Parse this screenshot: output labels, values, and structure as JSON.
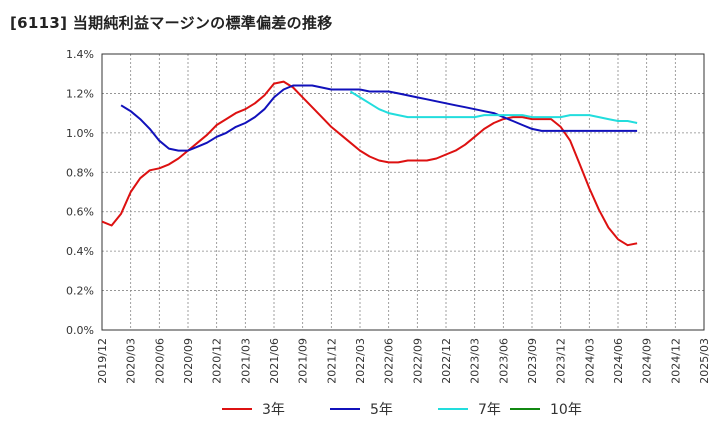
{
  "title": "[6113]  当期純利益マージンの標準偏差の推移",
  "chart_data": {
    "type": "line",
    "title": "[6113]  当期純利益マージンの標準偏差の推移",
    "xlabel": "",
    "ylabel": "",
    "ylim": [
      0,
      1.4
    ],
    "y_ticks": [
      "0.0%",
      "0.2%",
      "0.4%",
      "0.6%",
      "0.8%",
      "1.0%",
      "1.2%",
      "1.4%"
    ],
    "x_ticks": [
      "2019/12",
      "2020/03",
      "2020/06",
      "2020/09",
      "2020/12",
      "2021/03",
      "2021/06",
      "2021/09",
      "2021/12",
      "2022/03",
      "2022/06",
      "2022/09",
      "2022/12",
      "2023/03",
      "2023/06",
      "2023/09",
      "2023/12",
      "2024/03",
      "2024/06",
      "2024/09",
      "2024/12",
      "2025/03"
    ],
    "grid": true,
    "legend_position": "bottom",
    "series": [
      {
        "name": "3年",
        "color": "#dd1111",
        "points": [
          [
            0,
            0.55
          ],
          [
            1,
            0.53
          ],
          [
            2,
            0.59
          ],
          [
            3,
            0.7
          ],
          [
            4,
            0.77
          ],
          [
            5,
            0.81
          ],
          [
            6,
            0.82
          ],
          [
            7,
            0.84
          ],
          [
            8,
            0.87
          ],
          [
            9,
            0.91
          ],
          [
            10,
            0.95
          ],
          [
            11,
            0.99
          ],
          [
            12,
            1.04
          ],
          [
            13,
            1.07
          ],
          [
            14,
            1.1
          ],
          [
            15,
            1.12
          ],
          [
            16,
            1.15
          ],
          [
            17,
            1.19
          ],
          [
            18,
            1.25
          ],
          [
            19,
            1.26
          ],
          [
            20,
            1.23
          ],
          [
            21,
            1.18
          ],
          [
            22,
            1.13
          ],
          [
            23,
            1.08
          ],
          [
            24,
            1.03
          ],
          [
            25,
            0.99
          ],
          [
            26,
            0.95
          ],
          [
            27,
            0.91
          ],
          [
            28,
            0.88
          ],
          [
            29,
            0.86
          ],
          [
            30,
            0.85
          ],
          [
            31,
            0.85
          ],
          [
            32,
            0.86
          ],
          [
            33,
            0.86
          ],
          [
            34,
            0.86
          ],
          [
            35,
            0.87
          ],
          [
            36,
            0.89
          ],
          [
            37,
            0.91
          ],
          [
            38,
            0.94
          ],
          [
            39,
            0.98
          ],
          [
            40,
            1.02
          ],
          [
            41,
            1.05
          ],
          [
            42,
            1.07
          ],
          [
            43,
            1.08
          ],
          [
            44,
            1.08
          ],
          [
            45,
            1.07
          ],
          [
            46,
            1.07
          ],
          [
            47,
            1.07
          ],
          [
            48,
            1.03
          ],
          [
            49,
            0.96
          ],
          [
            50,
            0.84
          ],
          [
            51,
            0.72
          ],
          [
            52,
            0.61
          ],
          [
            53,
            0.52
          ],
          [
            54,
            0.46
          ],
          [
            55,
            0.43
          ],
          [
            56,
            0.44
          ]
        ]
      },
      {
        "name": "5年",
        "color": "#1111bb",
        "points": [
          [
            2,
            1.14
          ],
          [
            3,
            1.11
          ],
          [
            4,
            1.07
          ],
          [
            5,
            1.02
          ],
          [
            6,
            0.96
          ],
          [
            7,
            0.92
          ],
          [
            8,
            0.91
          ],
          [
            9,
            0.91
          ],
          [
            10,
            0.93
          ],
          [
            11,
            0.95
          ],
          [
            12,
            0.98
          ],
          [
            13,
            1.0
          ],
          [
            14,
            1.03
          ],
          [
            15,
            1.05
          ],
          [
            16,
            1.08
          ],
          [
            17,
            1.12
          ],
          [
            18,
            1.18
          ],
          [
            19,
            1.22
          ],
          [
            20,
            1.24
          ],
          [
            21,
            1.24
          ],
          [
            22,
            1.24
          ],
          [
            23,
            1.23
          ],
          [
            24,
            1.22
          ],
          [
            25,
            1.22
          ],
          [
            26,
            1.22
          ],
          [
            27,
            1.22
          ],
          [
            28,
            1.21
          ],
          [
            29,
            1.21
          ],
          [
            30,
            1.21
          ],
          [
            31,
            1.2
          ],
          [
            32,
            1.19
          ],
          [
            33,
            1.18
          ],
          [
            34,
            1.17
          ],
          [
            35,
            1.16
          ],
          [
            36,
            1.15
          ],
          [
            37,
            1.14
          ],
          [
            38,
            1.13
          ],
          [
            39,
            1.12
          ],
          [
            40,
            1.11
          ],
          [
            41,
            1.1
          ],
          [
            42,
            1.08
          ],
          [
            43,
            1.06
          ],
          [
            44,
            1.04
          ],
          [
            45,
            1.02
          ],
          [
            46,
            1.01
          ],
          [
            47,
            1.01
          ],
          [
            48,
            1.01
          ],
          [
            49,
            1.01
          ],
          [
            50,
            1.01
          ],
          [
            51,
            1.01
          ],
          [
            52,
            1.01
          ],
          [
            53,
            1.01
          ],
          [
            54,
            1.01
          ],
          [
            55,
            1.01
          ],
          [
            56,
            1.01
          ]
        ]
      },
      {
        "name": "7年",
        "color": "#22dddd",
        "points": [
          [
            26,
            1.21
          ],
          [
            27,
            1.18
          ],
          [
            28,
            1.15
          ],
          [
            29,
            1.12
          ],
          [
            30,
            1.1
          ],
          [
            31,
            1.09
          ],
          [
            32,
            1.08
          ],
          [
            33,
            1.08
          ],
          [
            34,
            1.08
          ],
          [
            35,
            1.08
          ],
          [
            36,
            1.08
          ],
          [
            37,
            1.08
          ],
          [
            38,
            1.08
          ],
          [
            39,
            1.08
          ],
          [
            40,
            1.09
          ],
          [
            41,
            1.09
          ],
          [
            42,
            1.09
          ],
          [
            43,
            1.09
          ],
          [
            44,
            1.09
          ],
          [
            45,
            1.08
          ],
          [
            46,
            1.08
          ],
          [
            47,
            1.08
          ],
          [
            48,
            1.08
          ],
          [
            49,
            1.09
          ],
          [
            50,
            1.09
          ],
          [
            51,
            1.09
          ],
          [
            52,
            1.08
          ],
          [
            53,
            1.07
          ],
          [
            54,
            1.06
          ],
          [
            55,
            1.06
          ],
          [
            56,
            1.05
          ]
        ]
      },
      {
        "name": "10年",
        "color": "#118811",
        "points": []
      }
    ]
  }
}
